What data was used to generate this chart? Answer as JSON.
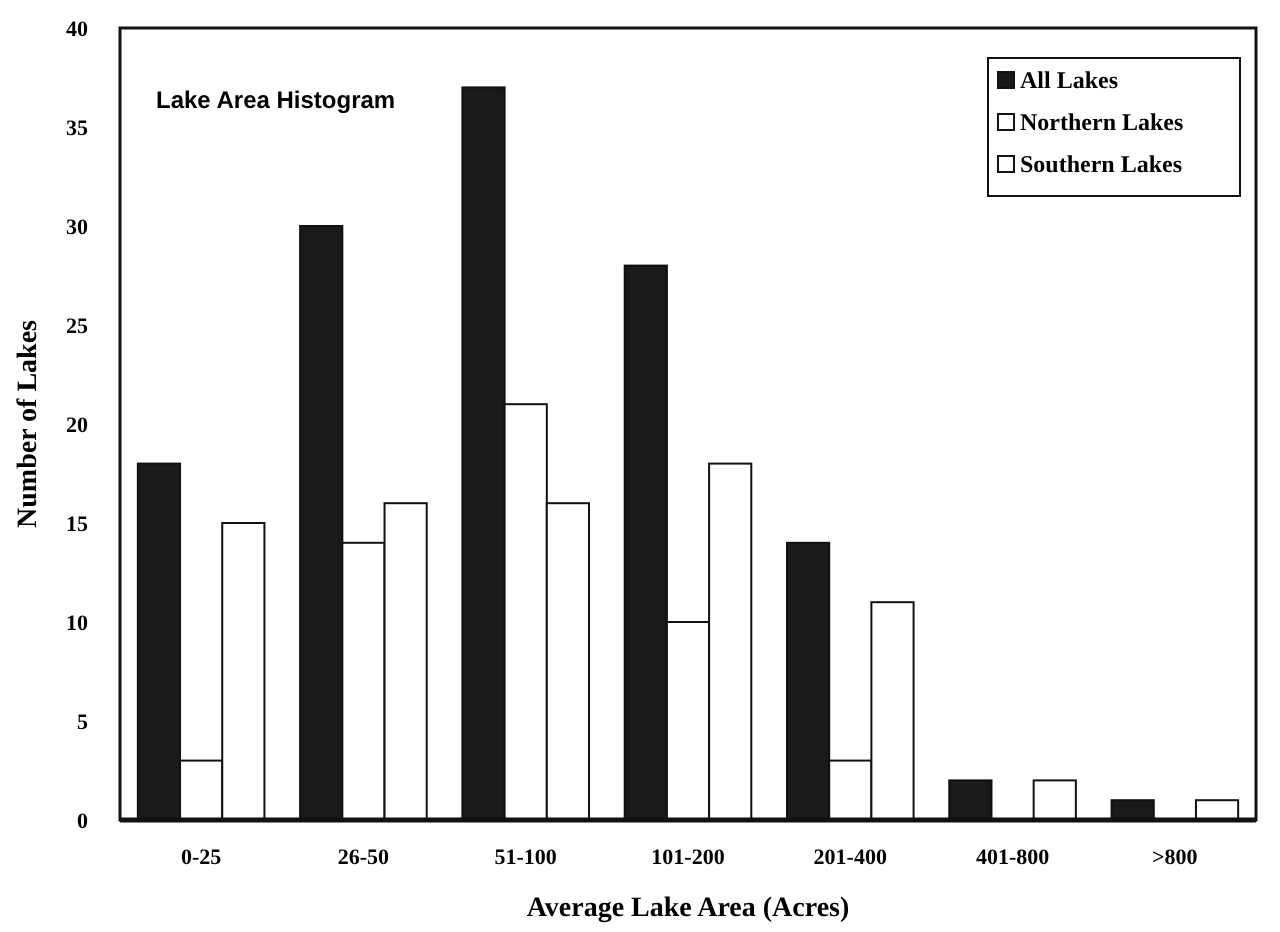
{
  "chart_data": {
    "type": "bar",
    "title": "Lake Area Histogram",
    "xlabel": "Average Lake Area (Acres)",
    "ylabel": "Number of Lakes",
    "categories": [
      "0-25",
      "26-50",
      "51-100",
      "101-200",
      "201-400",
      "401-800",
      ">800"
    ],
    "series": [
      {
        "name": "All Lakes",
        "color": "#1a1a1a",
        "values": [
          18,
          30,
          37,
          28,
          14,
          2,
          1
        ]
      },
      {
        "name": "Northern Lakes",
        "color": "#ffffff",
        "values": [
          3,
          14,
          21,
          10,
          3,
          0,
          0
        ]
      },
      {
        "name": "Southern Lakes",
        "color": "#ffffff",
        "values": [
          15,
          16,
          16,
          18,
          11,
          2,
          1
        ]
      }
    ],
    "ylim": [
      0,
      40
    ],
    "yticks": [
      0,
      5,
      10,
      15,
      20,
      25,
      30,
      35,
      40
    ],
    "grid": false,
    "legend": "top right"
  }
}
